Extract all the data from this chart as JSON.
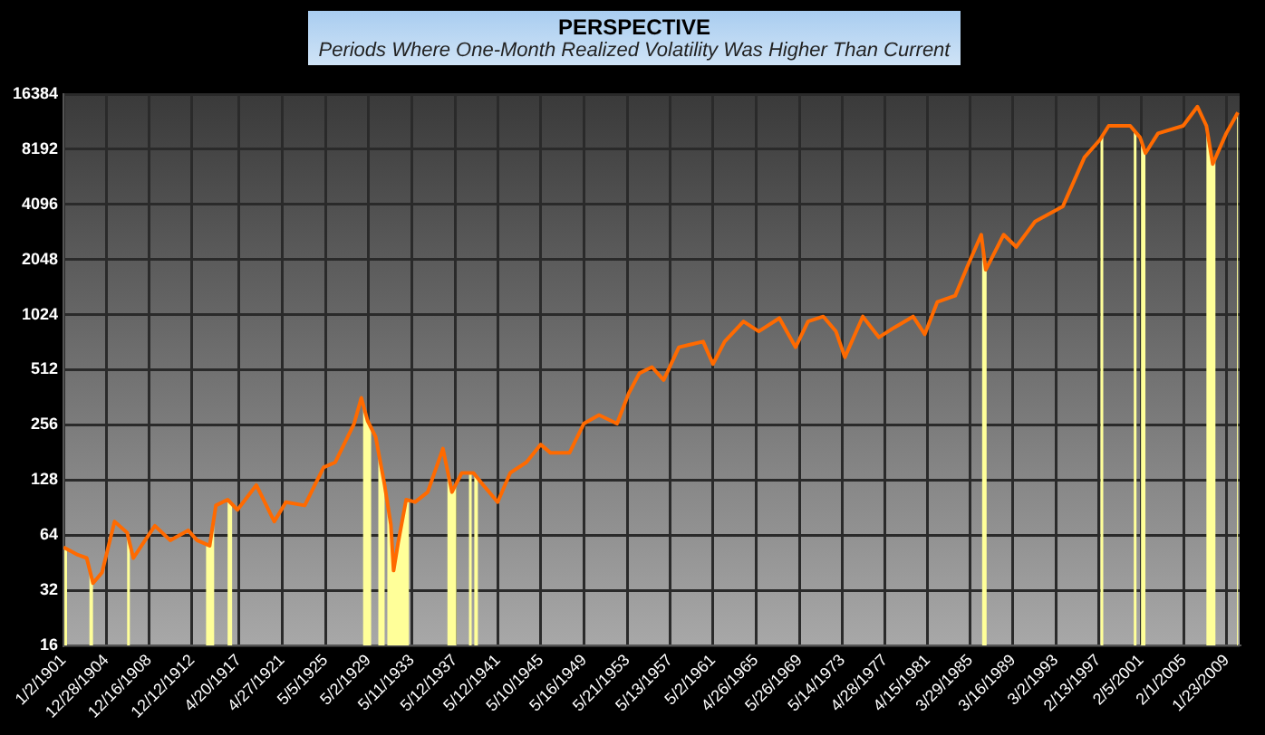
{
  "chart_data": {
    "type": "line",
    "title": "PERSPECTIVE",
    "subtitle": "Periods Where One-Month Realized Volatility Was Higher Than Current",
    "x": [
      "1901-01-02",
      "1902-05",
      "1903-03",
      "1903-10",
      "1904-08",
      "1905-10",
      "1906-12",
      "1907-07",
      "1908-08",
      "1909-07",
      "1910-12",
      "1912-08",
      "1913-06",
      "1914-08",
      "1915-03",
      "1916-04",
      "1917-03",
      "1918-12",
      "1920-08",
      "1921-09",
      "1923-06",
      "1925-03",
      "1926-04",
      "1928-01",
      "1928-09",
      "1929-04",
      "1930-01",
      "1930-11",
      "1931-06",
      "1931-09",
      "1932-02",
      "1932-11",
      "1933-09",
      "1934-11",
      "1936-04",
      "1937-02",
      "1938-01",
      "1939-02",
      "1940-01",
      "1941-05",
      "1942-07",
      "1944-01",
      "1945-05",
      "1946-04",
      "1948-01",
      "1949-05",
      "1950-10",
      "1952-06",
      "1953-07",
      "1954-07",
      "1955-09",
      "1956-10",
      "1958-03",
      "1960-06",
      "1961-05",
      "1962-06",
      "1964-03",
      "1965-08",
      "1967-07",
      "1969-01",
      "1970-03",
      "1971-08",
      "1972-10",
      "1973-08",
      "1975-04",
      "1976-10",
      "1978-03",
      "1979-12",
      "1981-01",
      "1982-03",
      "1983-11",
      "1985-01",
      "1986-04",
      "1986-09",
      "1988-05",
      "1989-07",
      "1991-04",
      "1993-11",
      "1995-11",
      "1997-04",
      "1998-02",
      "2000-02",
      "2001-01",
      "2001-07",
      "2002-09",
      "2005-01",
      "2006-05",
      "2007-03",
      "2007-10",
      "2009-01",
      "2010-02"
    ],
    "series": [
      {
        "color": "#ff6a00",
        "values": [
          55,
          50,
          48,
          35,
          40,
          76,
          66,
          48,
          60,
          72,
          60,
          68,
          60,
          56,
          93,
          100,
          88,
          120,
          76,
          97,
          93,
          150,
          160,
          260,
          360,
          270,
          220,
          120,
          73,
          41,
          58,
          100,
          97,
          110,
          190,
          110,
          140,
          140,
          120,
          97,
          140,
          160,
          200,
          180,
          180,
          260,
          290,
          260,
          380,
          490,
          530,
          450,
          680,
          730,
          550,
          730,
          940,
          830,
          980,
          680,
          940,
          1000,
          830,
          600,
          1000,
          770,
          870,
          1000,
          800,
          1200,
          1300,
          1900,
          2800,
          1800,
          2800,
          2400,
          3300,
          4000,
          7400,
          9200,
          11000,
          11000,
          9500,
          7800,
          10000,
          11000,
          14000,
          11000,
          6800,
          10000,
          13000
        ]
      }
    ],
    "xlim": [
      "1901-01-02",
      "2010-04"
    ],
    "xticks": [
      {
        "value": "1901-01-02",
        "label": "1/2/1901"
      },
      {
        "value": "1904-12-28",
        "label": "12/28/1904"
      },
      {
        "value": "1908-12-16",
        "label": "12/16/1908"
      },
      {
        "value": "1912-12-12",
        "label": "12/12/1912"
      },
      {
        "value": "1917-04-20",
        "label": "4/20/1917"
      },
      {
        "value": "1921-04-27",
        "label": "4/27/1921"
      },
      {
        "value": "1925-05-05",
        "label": "5/5/1925"
      },
      {
        "value": "1929-05-02",
        "label": "5/2/1929"
      },
      {
        "value": "1933-05-11",
        "label": "5/11/1933"
      },
      {
        "value": "1937-05-12",
        "label": "5/12/1937"
      },
      {
        "value": "1941-05-12",
        "label": "5/12/1941"
      },
      {
        "value": "1945-05-10",
        "label": "5/10/1945"
      },
      {
        "value": "1949-05-16",
        "label": "5/16/1949"
      },
      {
        "value": "1953-05-21",
        "label": "5/21/1953"
      },
      {
        "value": "1957-05-13",
        "label": "5/13/1957"
      },
      {
        "value": "1961-05-02",
        "label": "5/2/1961"
      },
      {
        "value": "1965-04-26",
        "label": "4/26/1965"
      },
      {
        "value": "1969-05-26",
        "label": "5/26/1969"
      },
      {
        "value": "1973-05-14",
        "label": "5/14/1973"
      },
      {
        "value": "1977-04-28",
        "label": "4/28/1977"
      },
      {
        "value": "1981-04-15",
        "label": "4/15/1981"
      },
      {
        "value": "1985-03-29",
        "label": "3/29/1985"
      },
      {
        "value": "1989-03-16",
        "label": "3/16/1989"
      },
      {
        "value": "1993-03-02",
        "label": "3/2/1993"
      },
      {
        "value": "1997-02-13",
        "label": "2/13/1997"
      },
      {
        "value": "2001-02-05",
        "label": "2/5/2001"
      },
      {
        "value": "2005-02-01",
        "label": "2/1/2005"
      },
      {
        "value": "2009-01-23",
        "label": "1/23/2009"
      }
    ],
    "ylim": [
      16,
      16384
    ],
    "yticks": [
      16,
      32,
      64,
      128,
      256,
      512,
      1024,
      2048,
      4096,
      8192,
      16384
    ],
    "log": "y",
    "grid": true,
    "legend": false,
    "marker": "none",
    "line_style": "solid",
    "bands": [
      {
        "axis": "x",
        "from": "1901-02",
        "to": "1901-05",
        "color": "#ffff99"
      },
      {
        "axis": "x",
        "from": "1903-06",
        "to": "1903-10",
        "color": "#ffff99"
      },
      {
        "axis": "x",
        "from": "1906-12",
        "to": "1907-03",
        "color": "#ffff99"
      },
      {
        "axis": "x",
        "from": "1914-04",
        "to": "1915-01",
        "color": "#ffff99"
      },
      {
        "axis": "x",
        "from": "1916-04",
        "to": "1916-09",
        "color": "#ffff99"
      },
      {
        "axis": "x",
        "from": "1928-11",
        "to": "1929-08",
        "color": "#ffff99"
      },
      {
        "axis": "x",
        "from": "1930-04",
        "to": "1930-11",
        "color": "#ffff99"
      },
      {
        "axis": "x",
        "from": "1931-02",
        "to": "1933-02",
        "color": "#ffff99"
      },
      {
        "axis": "x",
        "from": "1936-09",
        "to": "1937-07",
        "color": "#ffff99"
      },
      {
        "axis": "x",
        "from": "1938-09",
        "to": "1938-12",
        "color": "#ffff99"
      },
      {
        "axis": "x",
        "from": "1939-03",
        "to": "1939-07",
        "color": "#ffff99"
      },
      {
        "axis": "x",
        "from": "1986-05",
        "to": "1986-10",
        "color": "#ffff99"
      },
      {
        "axis": "x",
        "from": "1997-05",
        "to": "1997-08",
        "color": "#ffff99"
      },
      {
        "axis": "x",
        "from": "2000-06",
        "to": "2000-09",
        "color": "#ffff99"
      },
      {
        "axis": "x",
        "from": "2001-02",
        "to": "2001-07",
        "color": "#ffff99"
      },
      {
        "axis": "x",
        "from": "2007-03",
        "to": "2008-01",
        "color": "#ffff99"
      },
      {
        "axis": "x",
        "from": "2010-01",
        "to": "2010-04",
        "color": "#ffff99"
      }
    ]
  }
}
